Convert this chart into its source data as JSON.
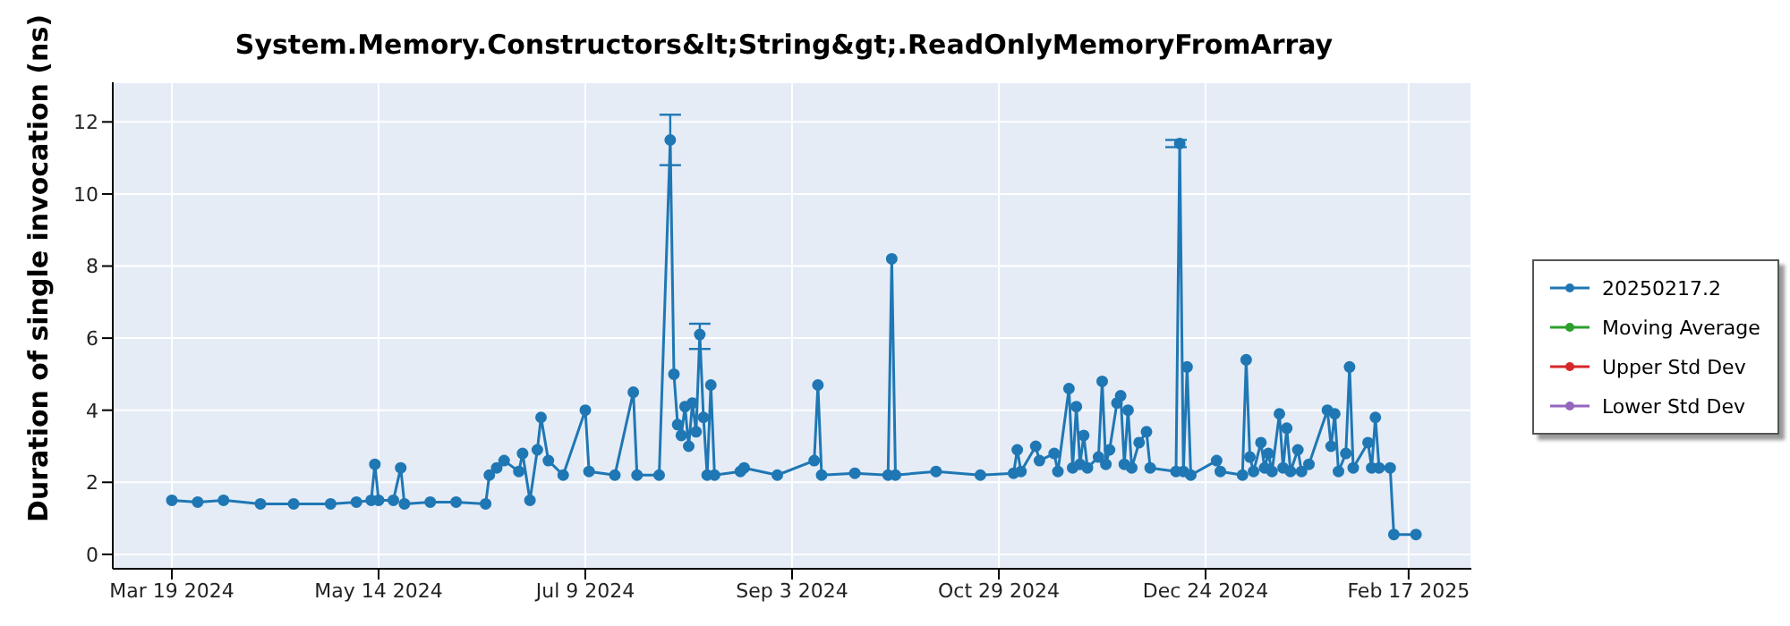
{
  "chart_data": {
    "type": "line",
    "title": "System.Memory.Constructors&lt;String&gt;.ReadOnlyMemoryFromArray",
    "ylabel": "Duration of single invocation (ns)",
    "xlim": [
      "2024-03-03",
      "2025-03-06"
    ],
    "xticks": [
      {
        "value": "2024-03-19",
        "label": "Mar 19 2024"
      },
      {
        "value": "2024-05-14",
        "label": "May 14 2024"
      },
      {
        "value": "2024-07-09",
        "label": "Jul 9 2024"
      },
      {
        "value": "2024-09-03",
        "label": "Sep 3 2024"
      },
      {
        "value": "2024-10-29",
        "label": "Oct 29 2024"
      },
      {
        "value": "2024-12-24",
        "label": "Dec 24 2024"
      },
      {
        "value": "2025-02-17",
        "label": "Feb 17 2025"
      }
    ],
    "ylim": [
      -0.4,
      13.1
    ],
    "yticks": [
      0,
      2,
      4,
      6,
      8,
      10,
      12
    ],
    "grid": true,
    "legend": "right",
    "marker": "circle",
    "line_style": "solid",
    "series": [
      {
        "name": "20250217.2",
        "color": "#1f77b4",
        "x": [
          "2024-03-19",
          "2024-03-26",
          "2024-04-02",
          "2024-04-12",
          "2024-04-21",
          "2024-05-01",
          "2024-05-08",
          "2024-05-12",
          "2024-05-13",
          "2024-05-14",
          "2024-05-18",
          "2024-05-20",
          "2024-05-21",
          "2024-05-28",
          "2024-06-04",
          "2024-06-12",
          "2024-06-13",
          "2024-06-15",
          "2024-06-17",
          "2024-06-21",
          "2024-06-22",
          "2024-06-24",
          "2024-06-26",
          "2024-06-27",
          "2024-06-29",
          "2024-07-03",
          "2024-07-09",
          "2024-07-10",
          "2024-07-17",
          "2024-07-22",
          "2024-07-23",
          "2024-07-29",
          "2024-08-01",
          "2024-08-02",
          "2024-08-03",
          "2024-08-04",
          "2024-08-05",
          "2024-08-06",
          "2024-08-07",
          "2024-08-08",
          "2024-08-09",
          "2024-08-10",
          "2024-08-11",
          "2024-08-12",
          "2024-08-13",
          "2024-08-20",
          "2024-08-21",
          "2024-08-30",
          "2024-09-09",
          "2024-09-10",
          "2024-09-11",
          "2024-09-20",
          "2024-09-29",
          "2024-09-30",
          "2024-10-01",
          "2024-10-12",
          "2024-10-24",
          "2024-11-02",
          "2024-11-03",
          "2024-11-04",
          "2024-11-08",
          "2024-11-09",
          "2024-11-13",
          "2024-11-14",
          "2024-11-17",
          "2024-11-18",
          "2024-11-19",
          "2024-11-20",
          "2024-11-21",
          "2024-11-22",
          "2024-11-25",
          "2024-11-26",
          "2024-11-27",
          "2024-11-28",
          "2024-11-30",
          "2024-12-01",
          "2024-12-02",
          "2024-12-03",
          "2024-12-04",
          "2024-12-06",
          "2024-12-08",
          "2024-12-09",
          "2024-12-16",
          "2024-12-17",
          "2024-12-18",
          "2024-12-19",
          "2024-12-20",
          "2024-12-27",
          "2024-12-28",
          "2025-01-03",
          "2025-01-04",
          "2025-01-05",
          "2025-01-06",
          "2025-01-08",
          "2025-01-09",
          "2025-01-10",
          "2025-01-11",
          "2025-01-13",
          "2025-01-14",
          "2025-01-15",
          "2025-01-16",
          "2025-01-18",
          "2025-01-19",
          "2025-01-21",
          "2025-01-26",
          "2025-01-27",
          "2025-01-28",
          "2025-01-29",
          "2025-01-31",
          "2025-02-01",
          "2025-02-02",
          "2025-02-06",
          "2025-02-07",
          "2025-02-08",
          "2025-02-09",
          "2025-02-12",
          "2025-02-13",
          "2025-02-19"
        ],
        "values": [
          1.5,
          1.45,
          1.5,
          1.4,
          1.4,
          1.4,
          1.45,
          1.5,
          2.5,
          1.5,
          1.5,
          2.4,
          1.4,
          1.45,
          1.45,
          1.4,
          2.2,
          2.4,
          2.6,
          2.3,
          2.8,
          1.5,
          2.9,
          3.8,
          2.6,
          2.2,
          4.0,
          2.3,
          2.2,
          4.5,
          2.2,
          2.2,
          11.5,
          5.0,
          3.6,
          3.3,
          4.1,
          3.0,
          4.2,
          3.4,
          6.1,
          3.8,
          2.2,
          4.7,
          2.2,
          2.3,
          2.4,
          2.2,
          2.6,
          4.7,
          2.2,
          2.25,
          2.2,
          8.2,
          2.2,
          2.3,
          2.2,
          2.25,
          2.9,
          2.3,
          3.0,
          2.6,
          2.8,
          2.3,
          4.6,
          2.4,
          4.1,
          2.5,
          3.3,
          2.4,
          2.7,
          4.8,
          2.5,
          2.9,
          4.2,
          4.4,
          2.5,
          4.0,
          2.4,
          3.1,
          3.4,
          2.4,
          2.3,
          11.4,
          2.3,
          5.2,
          2.2,
          2.6,
          2.3,
          2.2,
          5.4,
          2.7,
          2.3,
          3.1,
          2.4,
          2.8,
          2.3,
          3.9,
          2.4,
          3.5,
          2.3,
          2.9,
          2.3,
          2.5,
          4.0,
          3.0,
          3.9,
          2.3,
          2.8,
          5.2,
          2.4,
          3.1,
          2.4,
          3.8,
          2.4,
          2.4,
          0.55,
          0.55
        ],
        "errors": [
          null,
          null,
          null,
          null,
          null,
          null,
          null,
          null,
          null,
          null,
          null,
          null,
          null,
          null,
          null,
          null,
          null,
          null,
          null,
          null,
          null,
          null,
          null,
          null,
          null,
          null,
          null,
          null,
          null,
          null,
          null,
          null,
          [
            10.8,
            12.2
          ],
          null,
          null,
          null,
          null,
          null,
          null,
          null,
          [
            5.7,
            6.4
          ],
          null,
          null,
          null,
          null,
          null,
          null,
          null,
          null,
          null,
          null,
          null,
          null,
          null,
          null,
          null,
          null,
          null,
          null,
          null,
          null,
          null,
          null,
          null,
          null,
          null,
          null,
          null,
          null,
          null,
          null,
          null,
          null,
          null,
          null,
          null,
          null,
          null,
          null,
          null,
          null,
          null,
          [
            11.3,
            11.5
          ],
          null,
          null,
          null,
          null,
          null,
          null,
          null,
          null,
          null,
          null,
          null,
          null,
          null,
          null,
          null,
          null,
          null,
          null,
          null,
          null,
          null,
          null,
          null,
          null,
          null,
          null,
          null,
          null,
          null,
          null,
          null,
          null,
          null,
          null,
          null
        ]
      },
      {
        "name": "Moving Average",
        "color": "#2ca02c"
      },
      {
        "name": "Upper Std Dev",
        "color": "#d62728"
      },
      {
        "name": "Lower Std Dev",
        "color": "#9467bd"
      }
    ]
  }
}
